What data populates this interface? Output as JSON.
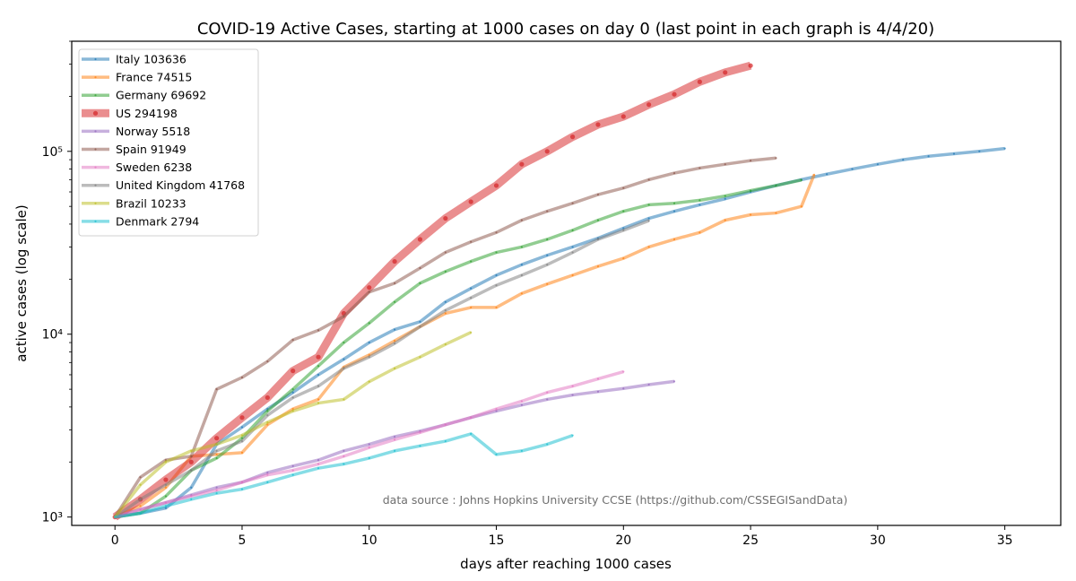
{
  "chart_data": {
    "type": "line",
    "title": "COVID-19 Active Cases, starting at 1000 cases on day 0 (last point in each graph is 4/4/20)",
    "xlabel": "days after reaching 1000 cases",
    "ylabel": "active cases (log scale)",
    "xlim": [
      -1.7,
      37.2
    ],
    "ylim": [
      900,
      400000
    ],
    "y_scale": "log",
    "x_ticks": [
      0,
      5,
      10,
      15,
      20,
      25,
      30,
      35
    ],
    "x_tick_labels": [
      "0",
      "5",
      "10",
      "15",
      "20",
      "25",
      "30",
      "35"
    ],
    "y_ticks": [
      1000,
      10000,
      100000
    ],
    "y_tick_labels": [
      "10³",
      "10⁴",
      "10⁵"
    ],
    "grid": false,
    "legend_position": "top-left",
    "annotation": "data source : Johns Hopkins University CCSE (https://github.com/CSSEGISandData)",
    "series": [
      {
        "name": "Italy 103636",
        "color": "#1f77b4",
        "width": 3.5,
        "marker_size": 1.1,
        "x": [
          0,
          1,
          2,
          3,
          4,
          5,
          6,
          7,
          8,
          9,
          10,
          11,
          12,
          13,
          14,
          15,
          16,
          17,
          18,
          19,
          20,
          21,
          22,
          23,
          24,
          25,
          26,
          27,
          28,
          29,
          30,
          31,
          32,
          33,
          34,
          35
        ],
        "y": [
          1000,
          1050,
          1120,
          1450,
          2500,
          3100,
          3900,
          4800,
          6000,
          7300,
          9000,
          10600,
          11700,
          15000,
          17800,
          21000,
          24000,
          27000,
          30000,
          33500,
          38000,
          43000,
          47000,
          51000,
          55000,
          60000,
          65000,
          70000,
          75000,
          80000,
          85000,
          90000,
          94000,
          97000,
          100000,
          103636
        ]
      },
      {
        "name": "France 74515",
        "color": "#ff7f0e",
        "width": 3.5,
        "marker_size": 1.1,
        "x": [
          0,
          1,
          2,
          3,
          4,
          5,
          6,
          7,
          8,
          9,
          10,
          11,
          12,
          13,
          14,
          15,
          16,
          17,
          18,
          19,
          20,
          21,
          22,
          23,
          24,
          25,
          26,
          27,
          27.5
        ],
        "y": [
          1000,
          1150,
          1450,
          2150,
          2200,
          2250,
          3200,
          3900,
          4400,
          6600,
          7700,
          9200,
          11000,
          13000,
          14000,
          14000,
          16700,
          18800,
          21000,
          23500,
          26000,
          30000,
          33000,
          36000,
          42000,
          45000,
          46000,
          50000,
          74515
        ]
      },
      {
        "name": "Germany 69692",
        "color": "#2ca02c",
        "width": 3.5,
        "marker_size": 1.1,
        "x": [
          0,
          1,
          2,
          3,
          4,
          5,
          6,
          7,
          8,
          9,
          10,
          11,
          12,
          13,
          14,
          15,
          16,
          17,
          18,
          19,
          20,
          21,
          22,
          23,
          24,
          25,
          26,
          27
        ],
        "y": [
          1000,
          1050,
          1300,
          1800,
          2100,
          2700,
          3800,
          5000,
          6700,
          9000,
          11500,
          15000,
          19000,
          22000,
          25000,
          28000,
          30000,
          33000,
          37000,
          42000,
          47000,
          51000,
          52000,
          54000,
          57000,
          61000,
          65000,
          69692
        ]
      },
      {
        "name": "US 294198",
        "color": "#d62728",
        "width": 9,
        "marker_size": 2.6,
        "x": [
          0,
          1,
          2,
          3,
          4,
          5,
          6,
          7,
          8,
          9,
          10,
          11,
          12,
          13,
          14,
          15,
          16,
          17,
          18,
          19,
          20,
          21,
          22,
          23,
          24,
          25
        ],
        "y": [
          1000,
          1250,
          1600,
          2000,
          2700,
          3500,
          4500,
          6300,
          7500,
          13000,
          18000,
          25000,
          33000,
          43000,
          53000,
          65000,
          85000,
          100000,
          120000,
          140000,
          155000,
          180000,
          205000,
          240000,
          270000,
          294198
        ]
      },
      {
        "name": "Norway 5518",
        "color": "#9467bd",
        "width": 3.5,
        "marker_size": 1.1,
        "x": [
          0,
          1,
          2,
          3,
          4,
          5,
          6,
          7,
          8,
          9,
          10,
          11,
          12,
          13,
          14,
          15,
          16,
          17,
          18,
          19,
          20,
          21,
          22
        ],
        "y": [
          1000,
          1100,
          1200,
          1320,
          1450,
          1550,
          1750,
          1900,
          2050,
          2300,
          2500,
          2750,
          2950,
          3200,
          3500,
          3800,
          4100,
          4400,
          4650,
          4850,
          5050,
          5300,
          5518
        ]
      },
      {
        "name": "Spain 91949",
        "color": "#8c564b",
        "width": 3.5,
        "marker_size": 1.1,
        "x": [
          0,
          1,
          2,
          3,
          4,
          5,
          6,
          7,
          8,
          9,
          10,
          11,
          12,
          13,
          14,
          15,
          16,
          17,
          18,
          19,
          20,
          21,
          22,
          23,
          24,
          25,
          26
        ],
        "y": [
          1000,
          1650,
          2050,
          2150,
          5000,
          5800,
          7100,
          9300,
          10500,
          12500,
          17000,
          19000,
          23000,
          28000,
          32000,
          36000,
          42000,
          47000,
          52000,
          58000,
          63000,
          70000,
          76000,
          81000,
          85000,
          89000,
          91949
        ]
      },
      {
        "name": "Sweden 6238",
        "color": "#e377c2",
        "width": 3.5,
        "marker_size": 1.1,
        "x": [
          0,
          1,
          2,
          3,
          4,
          5,
          6,
          7,
          8,
          9,
          10,
          11,
          12,
          13,
          14,
          15,
          16,
          17,
          18,
          19,
          20
        ],
        "y": [
          1000,
          1100,
          1200,
          1300,
          1400,
          1550,
          1700,
          1800,
          1950,
          2150,
          2400,
          2650,
          2900,
          3200,
          3500,
          3900,
          4300,
          4800,
          5200,
          5700,
          6238
        ]
      },
      {
        "name": "United Kingdom 41768",
        "color": "#7f7f7f",
        "width": 3.5,
        "marker_size": 1.1,
        "x": [
          0,
          1,
          2,
          3,
          4,
          5,
          6,
          7,
          8,
          9,
          10,
          11,
          12,
          13,
          14,
          15,
          16,
          17,
          18,
          19,
          20,
          21
        ],
        "y": [
          1000,
          1250,
          1500,
          1800,
          2300,
          2600,
          3600,
          4500,
          5200,
          6500,
          7500,
          8900,
          11000,
          13500,
          15800,
          18500,
          21000,
          24000,
          28000,
          33000,
          37000,
          41768
        ]
      },
      {
        "name": "Brazil 10233",
        "color": "#bcbd22",
        "width": 3.5,
        "marker_size": 1.1,
        "x": [
          0,
          1,
          2,
          3,
          4,
          5,
          6,
          7,
          8,
          9,
          10,
          11,
          12,
          13,
          14
        ],
        "y": [
          1000,
          1500,
          2000,
          2300,
          2500,
          2800,
          3300,
          3800,
          4200,
          4400,
          5500,
          6500,
          7500,
          8800,
          10233
        ]
      },
      {
        "name": "Denmark 2794",
        "color": "#17becf",
        "width": 3.5,
        "marker_size": 1.1,
        "x": [
          0,
          1,
          2,
          3,
          4,
          5,
          6,
          7,
          8,
          9,
          10,
          11,
          12,
          13,
          14,
          15,
          16,
          17,
          18
        ],
        "y": [
          1000,
          1050,
          1150,
          1250,
          1350,
          1420,
          1550,
          1700,
          1850,
          1950,
          2100,
          2300,
          2450,
          2600,
          2850,
          2200,
          2300,
          2500,
          2794
        ]
      }
    ]
  }
}
